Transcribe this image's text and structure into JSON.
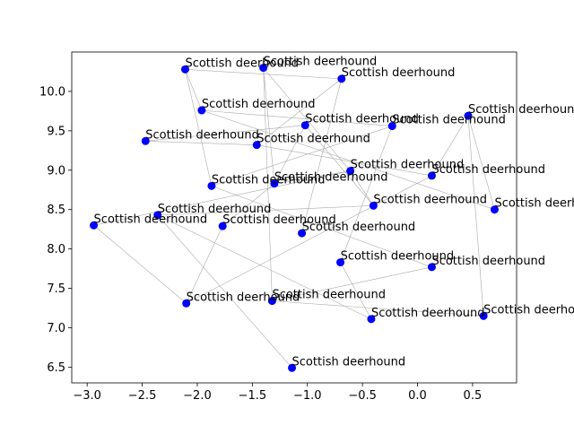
{
  "chart_data": {
    "type": "scatter",
    "title": "",
    "xlabel": "",
    "ylabel": "",
    "xlim": [
      -3.14,
      0.9
    ],
    "ylim": [
      6.3,
      10.5
    ],
    "xticks": [
      -3.0,
      -2.5,
      -2.0,
      -1.5,
      -1.0,
      -0.5,
      0.0,
      0.5
    ],
    "xtick_labels": [
      "−3.0",
      "−2.5",
      "−2.0",
      "−1.5",
      "−1.0",
      "−0.5",
      "0.0",
      "0.5"
    ],
    "yticks": [
      6.5,
      7.0,
      7.5,
      8.0,
      8.5,
      9.0,
      9.5,
      10.0
    ],
    "ytick_labels": [
      "6.5",
      "7.0",
      "7.5",
      "8.0",
      "8.5",
      "9.0",
      "9.5",
      "10.0"
    ],
    "grid": false,
    "marker_color": "#0000ff",
    "edge_color": "#aaaaaa",
    "points": [
      {
        "x": -2.11,
        "y": 10.28,
        "label": "Scottish deerhound"
      },
      {
        "x": -1.4,
        "y": 10.3,
        "label": "Scottish deerhound"
      },
      {
        "x": -0.69,
        "y": 10.16,
        "label": "Scottish deerhound"
      },
      {
        "x": -1.96,
        "y": 9.76,
        "label": "Scottish deerhound"
      },
      {
        "x": 0.46,
        "y": 9.69,
        "label": "Scottish deerhound"
      },
      {
        "x": -1.02,
        "y": 9.57,
        "label": "Scottish deerhound"
      },
      {
        "x": -0.23,
        "y": 9.56,
        "label": "Scottish deerhound"
      },
      {
        "x": -2.47,
        "y": 9.37,
        "label": "Scottish deerhound"
      },
      {
        "x": -1.46,
        "y": 9.32,
        "label": "Scottish deerhound"
      },
      {
        "x": -0.61,
        "y": 8.99,
        "label": "Scottish deerhound"
      },
      {
        "x": 0.13,
        "y": 8.93,
        "label": "Scottish deerhound"
      },
      {
        "x": -1.87,
        "y": 8.8,
        "label": "Scottish deerhound"
      },
      {
        "x": -1.3,
        "y": 8.83,
        "label": "Scottish deerhound"
      },
      {
        "x": -0.4,
        "y": 8.55,
        "label": "Scottish deerhound"
      },
      {
        "x": 0.7,
        "y": 8.5,
        "label": "Scottish deerhound"
      },
      {
        "x": -2.36,
        "y": 8.43,
        "label": "Scottish deerhound"
      },
      {
        "x": -2.94,
        "y": 8.3,
        "label": "Scottish deerhound"
      },
      {
        "x": -1.77,
        "y": 8.29,
        "label": "Scottish deerhound"
      },
      {
        "x": -1.05,
        "y": 8.2,
        "label": "Scottish deerhound"
      },
      {
        "x": -0.7,
        "y": 7.83,
        "label": "Scottish deerhound"
      },
      {
        "x": 0.13,
        "y": 7.77,
        "label": "Scottish deerhound"
      },
      {
        "x": -2.1,
        "y": 7.31,
        "label": "Scottish deerhound"
      },
      {
        "x": -1.32,
        "y": 7.34,
        "label": "Scottish deerhound"
      },
      {
        "x": -0.42,
        "y": 7.11,
        "label": "Scottish deerhound"
      },
      {
        "x": 0.6,
        "y": 7.15,
        "label": "Scottish deerhound"
      },
      {
        "x": -1.14,
        "y": 6.49,
        "label": "Scottish deerhound"
      }
    ],
    "edges": [
      [
        0,
        3
      ],
      [
        0,
        11
      ],
      [
        0,
        2
      ],
      [
        1,
        12
      ],
      [
        1,
        9
      ],
      [
        1,
        22
      ],
      [
        2,
        8
      ],
      [
        2,
        18
      ],
      [
        3,
        6
      ],
      [
        3,
        14
      ],
      [
        4,
        24
      ],
      [
        4,
        14
      ],
      [
        4,
        10
      ],
      [
        5,
        7
      ],
      [
        5,
        13
      ],
      [
        6,
        11
      ],
      [
        6,
        19
      ],
      [
        7,
        8
      ],
      [
        8,
        10
      ],
      [
        9,
        13
      ],
      [
        9,
        16
      ],
      [
        10,
        21
      ],
      [
        11,
        20
      ],
      [
        12,
        5
      ],
      [
        12,
        9
      ],
      [
        13,
        15
      ],
      [
        15,
        25
      ],
      [
        15,
        23
      ],
      [
        16,
        21
      ],
      [
        17,
        12
      ],
      [
        17,
        21
      ],
      [
        19,
        23
      ],
      [
        20,
        22
      ],
      [
        22,
        24
      ]
    ]
  }
}
